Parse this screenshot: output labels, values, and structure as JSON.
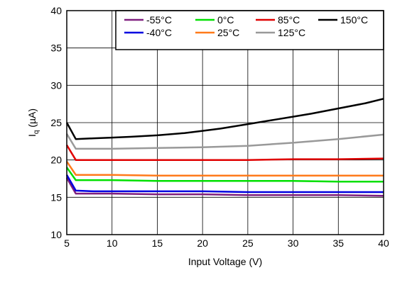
{
  "chart_data": {
    "type": "line",
    "title": "",
    "xlabel": "Input Voltage (V)",
    "ylabel": "Iq (µA)",
    "ylabel_main": "I",
    "ylabel_sub": "q",
    "ylabel_unit": " (µA)",
    "xlim": [
      5,
      40
    ],
    "ylim": [
      10,
      40
    ],
    "xticks": [
      5,
      10,
      15,
      20,
      25,
      30,
      35,
      40
    ],
    "yticks": [
      10,
      15,
      20,
      25,
      30,
      35,
      40
    ],
    "grid": true,
    "legend_position": "top-right",
    "series": [
      {
        "name": "-55°C",
        "color": "#7f1f7f",
        "x": [
          5,
          6,
          8,
          10,
          15,
          20,
          25,
          30,
          35,
          40
        ],
        "y": [
          17.6,
          15.5,
          15.5,
          15.5,
          15.4,
          15.4,
          15.3,
          15.3,
          15.3,
          15.2
        ]
      },
      {
        "name": "0°C",
        "color": "#00e000",
        "x": [
          5,
          6,
          8,
          10,
          15,
          20,
          25,
          30,
          35,
          40
        ],
        "y": [
          19.0,
          17.3,
          17.3,
          17.3,
          17.2,
          17.2,
          17.2,
          17.2,
          17.1,
          17.1
        ]
      },
      {
        "name": "85°C",
        "color": "#e00000",
        "x": [
          5,
          6,
          8,
          10,
          15,
          20,
          25,
          30,
          35,
          40
        ],
        "y": [
          22.0,
          20.0,
          20.0,
          20.0,
          20.0,
          20.0,
          20.0,
          20.1,
          20.1,
          20.2
        ]
      },
      {
        "name": "150°C",
        "color": "#000000",
        "x": [
          5,
          6,
          8,
          10,
          12,
          15,
          18,
          20,
          22,
          25,
          28,
          30,
          32,
          35,
          38,
          40
        ],
        "y": [
          25.0,
          22.8,
          22.9,
          23.0,
          23.1,
          23.3,
          23.6,
          23.9,
          24.2,
          24.8,
          25.4,
          25.8,
          26.2,
          26.9,
          27.6,
          28.2
        ]
      },
      {
        "name": "-40°C",
        "color": "#0000e0",
        "x": [
          5,
          6,
          8,
          10,
          15,
          20,
          25,
          30,
          35,
          40
        ],
        "y": [
          18.0,
          15.9,
          15.8,
          15.8,
          15.8,
          15.8,
          15.7,
          15.7,
          15.7,
          15.7
        ]
      },
      {
        "name": "25°C",
        "color": "#ff7a1a",
        "x": [
          5,
          6,
          8,
          10,
          15,
          20,
          25,
          30,
          35,
          40
        ],
        "y": [
          19.8,
          18.0,
          18.0,
          18.0,
          17.9,
          17.9,
          17.9,
          17.9,
          17.9,
          17.9
        ]
      },
      {
        "name": "125°C",
        "color": "#999999",
        "x": [
          5,
          6,
          8,
          10,
          15,
          20,
          25,
          30,
          35,
          40
        ],
        "y": [
          23.5,
          21.5,
          21.5,
          21.5,
          21.6,
          21.7,
          21.9,
          22.3,
          22.8,
          23.4
        ]
      }
    ]
  }
}
